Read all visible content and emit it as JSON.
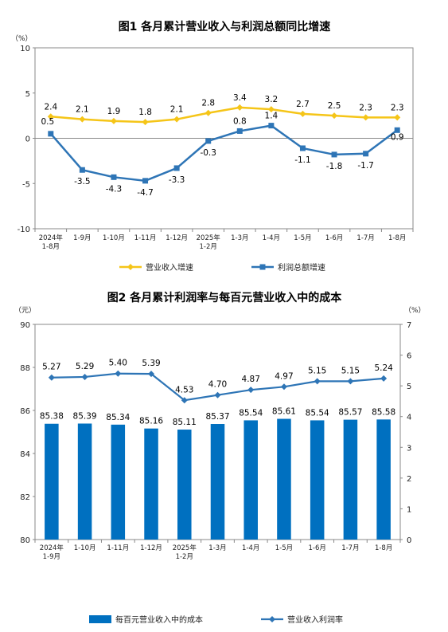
{
  "chart_data": [
    {
      "type": "line",
      "title": "图1  各月累计营业收入与利润总额同比增速",
      "y_unit": "（%）",
      "ylim": [
        -10,
        10
      ],
      "yticks": [
        "10",
        "5",
        "0",
        "-5",
        "-10"
      ],
      "categories": [
        [
          "2024年",
          "1-8月"
        ],
        [
          "1-9月"
        ],
        [
          "1-10月"
        ],
        [
          "1-11月"
        ],
        [
          "1-12月"
        ],
        [
          "2025年",
          "1-2月"
        ],
        [
          "1-3月"
        ],
        [
          "1-4月"
        ],
        [
          "1-5月"
        ],
        [
          "1-6月"
        ],
        [
          "1-7月"
        ],
        [
          "1-8月"
        ]
      ],
      "series": [
        {
          "name": "营业收入增速",
          "color": "#F5C518",
          "marker": "diamond",
          "values": [
            2.4,
            2.1,
            1.9,
            1.8,
            2.1,
            2.8,
            3.4,
            3.2,
            2.7,
            2.5,
            2.3,
            2.3
          ],
          "labels": [
            "2.4",
            "2.1",
            "1.9",
            "1.8",
            "2.1",
            "2.8",
            "3.4",
            "3.2",
            "2.7",
            "2.5",
            "2.3",
            "2.3"
          ]
        },
        {
          "name": "利润总额增速",
          "color": "#2E75B6",
          "marker": "square",
          "values": [
            0.5,
            -3.5,
            -4.3,
            -4.7,
            -3.3,
            -0.3,
            0.8,
            1.4,
            -1.1,
            -1.8,
            -1.7,
            0.9
          ],
          "labels": [
            "0.5",
            "-3.5",
            "-4.3",
            "-4.7",
            "-3.3",
            "-0.3",
            "0.8",
            "1.4",
            "-1.1",
            "-1.8",
            "-1.7",
            "0.9"
          ]
        }
      ],
      "legend": "bottom",
      "grid": false
    },
    {
      "type": "bar+line",
      "title": "图2  各月累计利润率与每百元营业收入中的成本",
      "left_unit": "（元）",
      "right_unit": "（%）",
      "ylim_left": [
        80,
        90
      ],
      "ylim_right": [
        0,
        7
      ],
      "yticks_left": [
        "90",
        "88",
        "86",
        "84",
        "82",
        "80"
      ],
      "yticks_right": [
        "7",
        "6",
        "5",
        "4",
        "3",
        "2",
        "1",
        "0"
      ],
      "categories": [
        [
          "2024年",
          "1-9月"
        ],
        [
          "1-10月"
        ],
        [
          "1-11月"
        ],
        [
          "1-12月"
        ],
        [
          "2025年",
          "1-2月"
        ],
        [
          "1-3月"
        ],
        [
          "1-4月"
        ],
        [
          "1-5月"
        ],
        [
          "1-6月"
        ],
        [
          "1-7月"
        ],
        [
          "1-8月"
        ]
      ],
      "series": [
        {
          "name": "每百元营业收入中的成本",
          "type": "bar",
          "axis": "left",
          "color": "#0070C0",
          "values": [
            85.38,
            85.39,
            85.34,
            85.16,
            85.11,
            85.37,
            85.54,
            85.61,
            85.54,
            85.57,
            85.58
          ],
          "labels": [
            "85.38",
            "85.39",
            "85.34",
            "85.16",
            "85.11",
            "85.37",
            "85.54",
            "85.61",
            "85.54",
            "85.57",
            "85.58"
          ]
        },
        {
          "name": "营业收入利润率",
          "type": "line",
          "axis": "right",
          "color": "#2E75B6",
          "values": [
            5.27,
            5.29,
            5.4,
            5.39,
            4.53,
            4.7,
            4.87,
            4.97,
            5.15,
            5.15,
            5.24
          ],
          "labels": [
            "5.27",
            "5.29",
            "5.40",
            "5.39",
            "4.53",
            "4.70",
            "4.87",
            "4.97",
            "5.15",
            "5.15",
            "5.24"
          ]
        }
      ],
      "legend": "bottom",
      "grid": false
    }
  ]
}
